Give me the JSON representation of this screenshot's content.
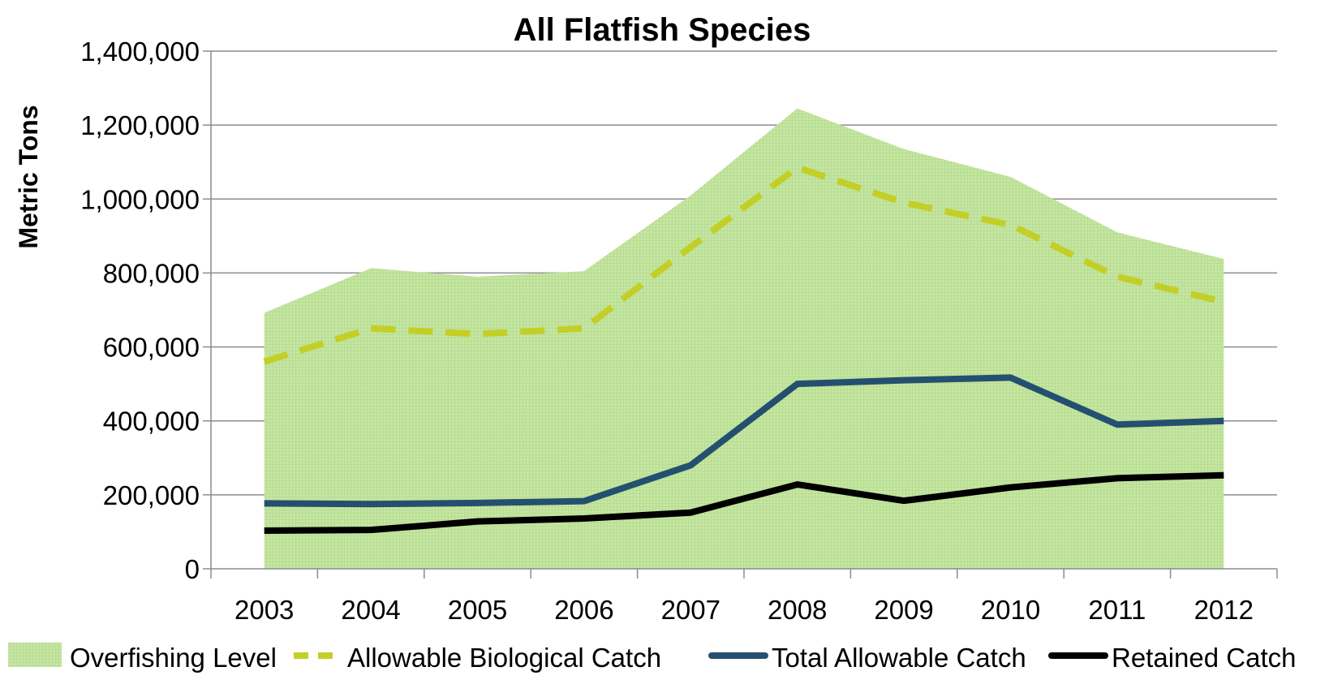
{
  "chart_data": {
    "type": "line",
    "title": "All Flatfish Species",
    "xlabel": "",
    "ylabel": "Metric Tons",
    "categories": [
      "2003",
      "2004",
      "2005",
      "2006",
      "2007",
      "2008",
      "2009",
      "2010",
      "2011",
      "2012"
    ],
    "ylim": [
      0,
      1400000
    ],
    "yticks": [
      0,
      200000,
      400000,
      600000,
      800000,
      1000000,
      1200000,
      1400000
    ],
    "ytick_labels": [
      "0",
      "200,000",
      "400,000",
      "600,000",
      "800,000",
      "1,000,000",
      "1,200,000",
      "1,400,000"
    ],
    "grid": true,
    "legend_position": "bottom",
    "series": [
      {
        "name": "Overfishing Level",
        "type": "area",
        "color": "#c6e6a4",
        "values": [
          692000,
          813000,
          790000,
          805000,
          1010000,
          1245000,
          1135000,
          1060000,
          910000,
          838000
        ]
      },
      {
        "name": "Allowable Biological Catch",
        "type": "line",
        "style": "dashed",
        "color": "#c3cf26",
        "values": [
          560000,
          650000,
          635000,
          650000,
          870000,
          1085000,
          990000,
          930000,
          790000,
          722000
        ]
      },
      {
        "name": "Total Allowable Catch",
        "type": "line",
        "style": "solid",
        "color": "#24506f",
        "values": [
          177000,
          175000,
          178000,
          183000,
          280000,
          500000,
          510000,
          517000,
          390000,
          400000
        ]
      },
      {
        "name": "Retained Catch",
        "type": "line",
        "style": "solid",
        "color": "#000000",
        "values": [
          103000,
          105000,
          128000,
          136000,
          152000,
          228000,
          184000,
          220000,
          245000,
          253000
        ]
      }
    ]
  }
}
